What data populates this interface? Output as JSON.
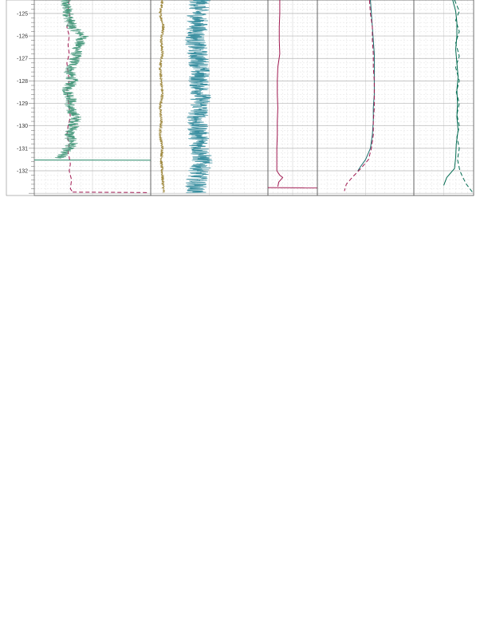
{
  "chart_data": {
    "type": "line",
    "y_axis": {
      "ticks": [
        -125,
        -126,
        -127,
        -128,
        -129,
        -130,
        -131,
        -132
      ],
      "tick_labels": [
        "-125",
        "-126",
        "-127",
        "-128",
        "-129",
        "-130",
        "-131",
        "-132"
      ],
      "range": [
        -124.4,
        -133.1
      ],
      "grid": true
    },
    "tracks": [
      {
        "series": [
          {
            "color": "#a01850",
            "dash": "dashed",
            "depth": [
              -124.4,
              -124.8,
              -125.2,
              -125.6,
              -126.0,
              -126.4,
              -126.8,
              -127.2,
              -127.6,
              -128.0,
              -128.4,
              -128.8,
              -129.2,
              -129.6,
              -130.0,
              -130.4,
              -130.8,
              -131.2,
              -131.4,
              -131.7,
              -132.0,
              -132.4,
              -132.8,
              -132.95
            ],
            "value": [
              0.3,
              0.29,
              0.31,
              0.28,
              0.3,
              0.29,
              0.3,
              0.28,
              0.29,
              0.3,
              0.28,
              0.29,
              0.3,
              0.31,
              0.29,
              0.28,
              0.3,
              0.29,
              0.3,
              0.31,
              0.3,
              0.32,
              0.31,
              0.33
            ]
          },
          {
            "color": "#a01850",
            "dash": "dashed",
            "depth": [
              -132.95,
              -132.96,
              -132.97
            ],
            "value": [
              0.33,
              0.7,
              0.98
            ]
          },
          {
            "color": "#4a9a7e",
            "dash": "solid",
            "noise": 0.05,
            "depth": [
              -124.4,
              -124.8,
              -125.2,
              -125.6,
              -126.0,
              -126.4,
              -126.8,
              -127.2,
              -127.6,
              -128.0,
              -128.4,
              -128.8,
              -129.2,
              -129.6,
              -130.0,
              -130.4,
              -130.8,
              -131.2,
              -131.45
            ],
            "value": [
              0.26,
              0.28,
              0.3,
              0.32,
              0.42,
              0.38,
              0.36,
              0.34,
              0.3,
              0.33,
              0.28,
              0.32,
              0.3,
              0.36,
              0.34,
              0.3,
              0.33,
              0.25,
              0.22
            ]
          },
          {
            "color": "#2a8a6a",
            "dash": "solid",
            "depth": [
              -131.52,
              -131.53
            ],
            "value": [
              0.0,
              1.0
            ]
          }
        ]
      },
      {
        "series": [
          {
            "color": "#a08a40",
            "dash": "solid",
            "noise": 0.012,
            "depth": [
              -124.4,
              -125.0,
              -125.6,
              -126.2,
              -126.8,
              -127.4,
              -128.0,
              -128.6,
              -129.2,
              -129.8,
              -130.4,
              -131.0,
              -131.6,
              -132.2,
              -132.97
            ],
            "value": [
              0.1,
              0.08,
              0.11,
              0.09,
              0.1,
              0.08,
              0.09,
              0.1,
              0.08,
              0.09,
              0.08,
              0.1,
              0.09,
              0.1,
              0.11
            ]
          },
          {
            "color": "#3a8fa0",
            "dash": "solid",
            "noise": 0.09,
            "depth": [
              -124.4,
              -125.0,
              -125.6,
              -126.2,
              -126.8,
              -127.4,
              -128.0,
              -128.6,
              -129.2,
              -129.8,
              -130.4,
              -131.0,
              -131.6,
              -132.2,
              -132.97
            ],
            "value": [
              0.42,
              0.4,
              0.4,
              0.38,
              0.4,
              0.42,
              0.41,
              0.43,
              0.42,
              0.39,
              0.41,
              0.42,
              0.44,
              0.4,
              0.38
            ]
          }
        ]
      },
      {
        "series": [
          {
            "color": "#a01850",
            "dash": "solid",
            "depth": [
              -124.4,
              -125.0,
              -125.6,
              -126.2,
              -126.8,
              -127.4,
              -128.0,
              -128.6,
              -129.2,
              -129.8,
              -130.4,
              -131.0,
              -131.6,
              -132.0,
              -132.2,
              -132.3,
              -132.5,
              -132.7
            ],
            "value": [
              0.24,
              0.24,
              0.23,
              0.23,
              0.24,
              0.2,
              0.19,
              0.19,
              0.2,
              0.19,
              0.19,
              0.18,
              0.18,
              0.18,
              0.24,
              0.3,
              0.22,
              0.2
            ]
          },
          {
            "color": "#a01850",
            "dash": "solid",
            "depth": [
              -132.75,
              -132.76
            ],
            "value": [
              0.0,
              1.0
            ]
          }
        ]
      },
      {
        "series": [
          {
            "color": "#1a6a6a",
            "dash": "solid",
            "depth": [
              -124.4,
              -125.0,
              -125.6,
              -126.2,
              -126.8,
              -127.4,
              -128.0,
              -128.6,
              -129.2,
              -129.8,
              -130.4,
              -131.0,
              -131.5,
              -131.8,
              -132.0
            ],
            "value": [
              0.55,
              0.56,
              0.57,
              0.58,
              0.59,
              0.59,
              0.59,
              0.59,
              0.58,
              0.58,
              0.57,
              0.55,
              0.5,
              0.45,
              0.42
            ]
          },
          {
            "color": "#a01850",
            "dash": "dashed",
            "depth": [
              -124.4,
              -125.0,
              -125.6,
              -126.2,
              -126.8,
              -127.4,
              -128.0,
              -128.6,
              -129.2,
              -129.8,
              -130.4,
              -131.0,
              -131.5,
              -131.9,
              -132.3,
              -132.6,
              -132.9
            ],
            "value": [
              0.54,
              0.55,
              0.57,
              0.57,
              0.58,
              0.58,
              0.59,
              0.59,
              0.59,
              0.58,
              0.58,
              0.56,
              0.53,
              0.45,
              0.36,
              0.3,
              0.28
            ]
          }
        ]
      },
      {
        "series": [
          {
            "color": "#006a50",
            "dash": "solid",
            "depth": [
              -124.4,
              -124.9,
              -125.4,
              -126.0,
              -126.6,
              -127.2,
              -127.8,
              -128.4,
              -129.0,
              -129.6,
              -130.2,
              -130.8,
              -131.4,
              -131.9,
              -132.3,
              -132.65
            ],
            "value": [
              0.65,
              0.7,
              0.72,
              0.72,
              0.7,
              0.72,
              0.74,
              0.72,
              0.73,
              0.72,
              0.74,
              0.71,
              0.7,
              0.68,
              0.55,
              0.5
            ]
          },
          {
            "color": "#006a50",
            "dash": "dashed",
            "depth": [
              -124.4,
              -124.9,
              -125.3,
              -125.8,
              -126.3,
              -126.9,
              -127.4,
              -128.0,
              -128.5,
              -129.0,
              -129.5,
              -130.0,
              -130.5,
              -131.0,
              -131.5,
              -132.0,
              -132.3,
              -132.6,
              -132.95
            ],
            "value": [
              0.68,
              0.76,
              0.7,
              0.76,
              0.7,
              0.76,
              0.7,
              0.76,
              0.71,
              0.76,
              0.72,
              0.76,
              0.72,
              0.76,
              0.73,
              0.77,
              0.82,
              0.88,
              0.98
            ]
          }
        ]
      }
    ]
  }
}
